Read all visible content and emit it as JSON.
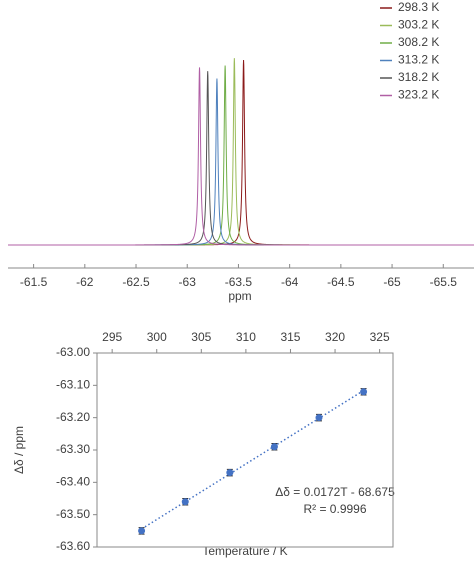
{
  "chart_data": [
    {
      "type": "spectrum",
      "xlabel": "ppm",
      "xlim": [
        -61.25,
        -65.8
      ],
      "xticks": [
        -61.5,
        -62.0,
        -62.5,
        -63.0,
        -63.5,
        -64.0,
        -64.5,
        -65.0,
        -65.5
      ],
      "legend": "top-right",
      "series": [
        {
          "name": "298.3 K",
          "color": "#8b1a1a",
          "position": -63.55,
          "height": 1.0
        },
        {
          "name": "303.2 K",
          "color": "#9bbb59",
          "position": -63.46,
          "height": 1.01
        },
        {
          "name": "308.2 K",
          "color": "#70ad47",
          "position": -63.37,
          "height": 0.97
        },
        {
          "name": "313.2 K",
          "color": "#4f81bd",
          "position": -63.29,
          "height": 0.9
        },
        {
          "name": "318.2 K",
          "color": "#555555",
          "position": -63.2,
          "height": 0.94
        },
        {
          "name": "323.2 K",
          "color": "#b05fa5",
          "position": -63.12,
          "height": 0.96
        }
      ]
    },
    {
      "type": "scatter",
      "xlabel": "Temperature / K",
      "ylabel": "Δδ / ppm",
      "x": [
        298.3,
        303.2,
        308.2,
        313.2,
        318.2,
        323.2
      ],
      "values": [
        -63.55,
        -63.46,
        -63.37,
        -63.29,
        -63.2,
        -63.12
      ],
      "errors": [
        0.01,
        0.01,
        0.01,
        0.01,
        0.01,
        0.01
      ],
      "color": "#4472c4",
      "xlim": [
        293.3,
        326.5
      ],
      "xticks": [
        295,
        300,
        305,
        310,
        315,
        320,
        325
      ],
      "ylim": [
        -63.6,
        -63.0
      ],
      "yticks": [
        {
          "value": -63.0,
          "label": "-63.00"
        },
        {
          "value": -63.1,
          "label": "-63.10"
        },
        {
          "value": -63.2,
          "label": "-63.20"
        },
        {
          "value": -63.3,
          "label": "-63.30"
        },
        {
          "value": -63.4,
          "label": "-63.40"
        },
        {
          "value": -63.5,
          "label": "-63.50"
        },
        {
          "value": -63.6,
          "label": "-63.60"
        }
      ],
      "trendline": {
        "slope": 0.0172,
        "intercept": -68.675
      },
      "annotations": [
        "Δδ = 0.0172T - 68.675",
        "R² = 0.9996"
      ]
    }
  ]
}
